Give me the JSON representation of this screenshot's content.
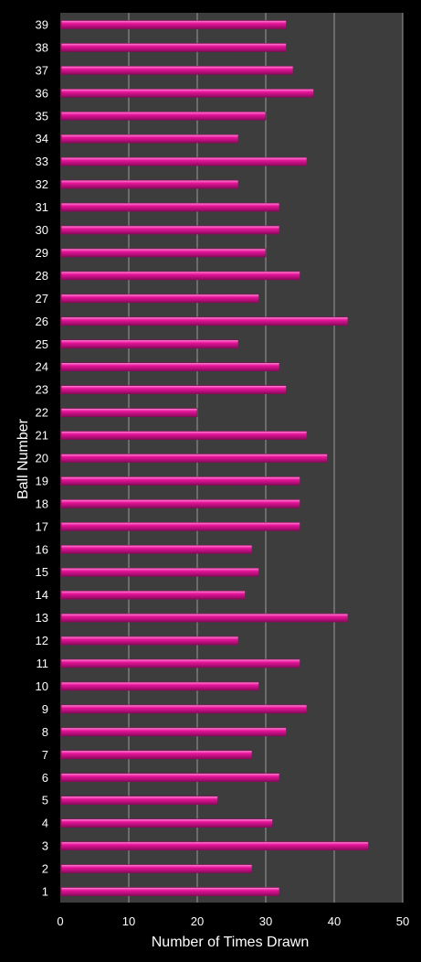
{
  "chart_data": {
    "type": "bar",
    "orientation": "horizontal",
    "categories": [
      "1",
      "2",
      "3",
      "4",
      "5",
      "6",
      "7",
      "8",
      "9",
      "10",
      "11",
      "12",
      "13",
      "14",
      "15",
      "16",
      "17",
      "18",
      "19",
      "20",
      "21",
      "22",
      "23",
      "24",
      "25",
      "26",
      "27",
      "28",
      "29",
      "30",
      "31",
      "32",
      "33",
      "34",
      "35",
      "36",
      "37",
      "38",
      "39"
    ],
    "values": [
      32,
      28,
      45,
      31,
      23,
      32,
      28,
      33,
      36,
      29,
      35,
      26,
      42,
      27,
      29,
      28,
      35,
      35,
      35,
      39,
      36,
      20,
      33,
      32,
      26,
      42,
      29,
      35,
      30,
      32,
      32,
      26,
      36,
      26,
      30,
      37,
      34,
      33,
      33
    ],
    "xlabel": "Number of Times Drawn",
    "ylabel": "Ball Number",
    "xlim": [
      0,
      50
    ],
    "xticks": [
      0,
      10,
      20,
      30,
      40,
      50
    ],
    "grid": "vertical",
    "legend": "none",
    "colors": {
      "background": "#000000",
      "plot_area": "#3d3d3d",
      "gridline": "#9a9a9a",
      "bar": "#e8149b",
      "bar_highlight": "#ff8fd6",
      "bar_shadow": "#8a0a5c",
      "text": "#ffffff"
    }
  }
}
